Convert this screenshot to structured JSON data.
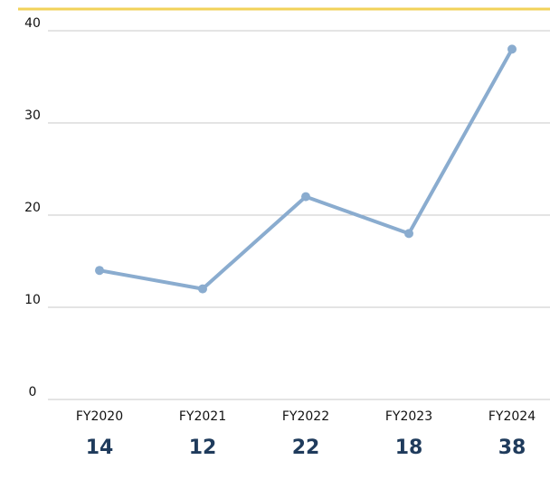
{
  "chart_data": {
    "type": "line",
    "categories": [
      "FY2020",
      "FY2021",
      "FY2022",
      "FY2023",
      "FY2024"
    ],
    "values": [
      14,
      12,
      22,
      18,
      38
    ],
    "color": "#8aaccf",
    "ylim": [
      0,
      40
    ],
    "yticks": [
      0,
      10,
      20,
      30,
      40
    ],
    "grid": true
  }
}
